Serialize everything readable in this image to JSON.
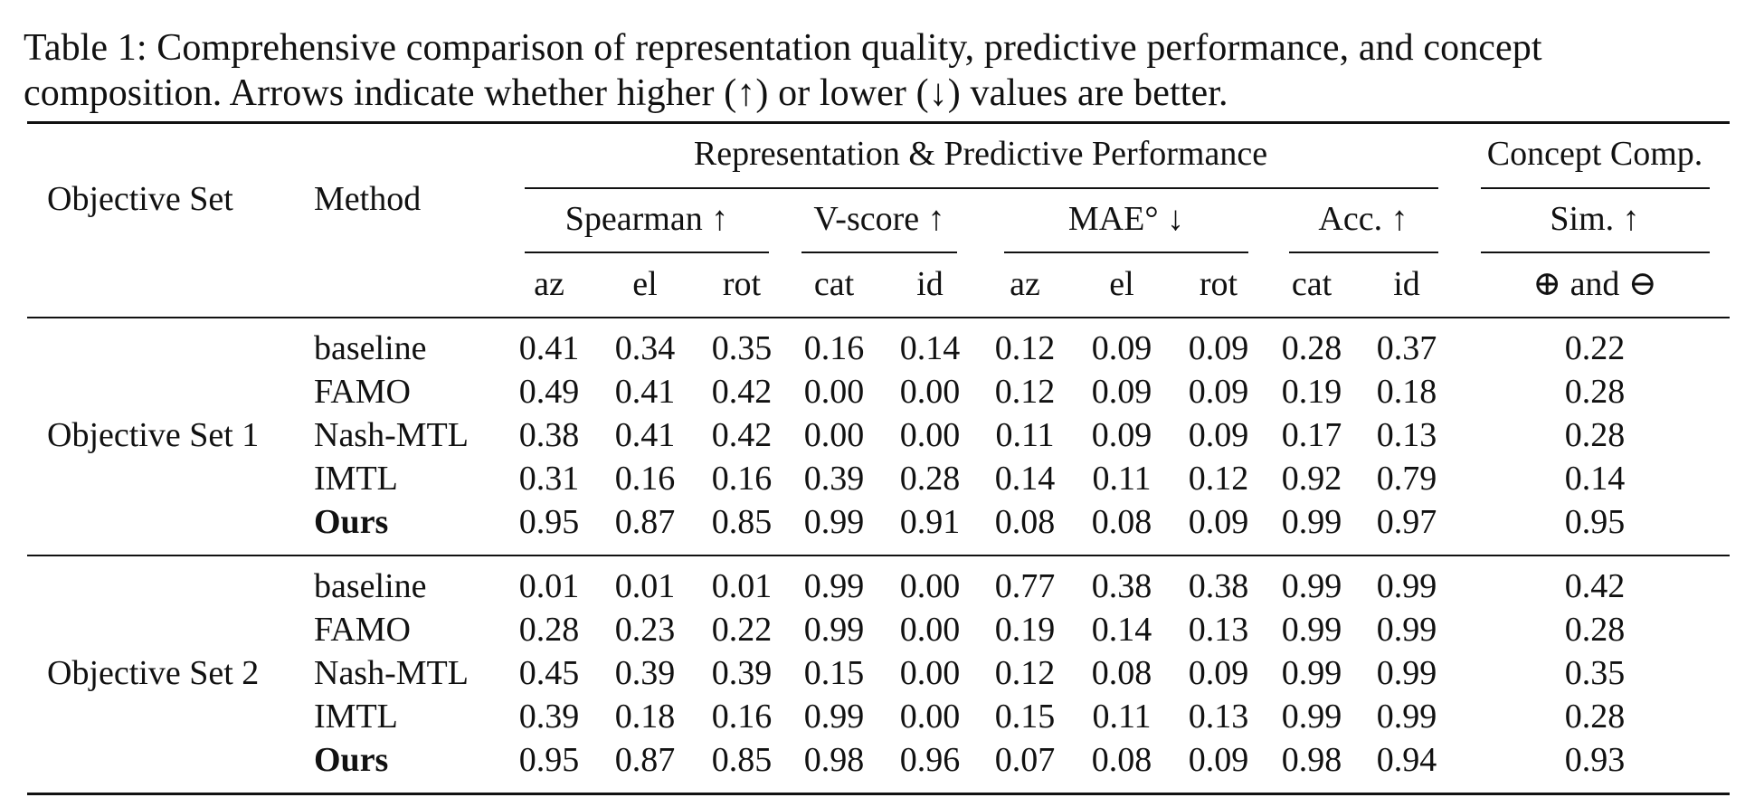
{
  "caption": {
    "line1": "Table 1: Comprehensive comparison of representation quality, predictive performance, and concept",
    "line2": "composition. Arrows indicate whether higher (↑) or lower (↓) values are better."
  },
  "header": {
    "objective_set": "Objective Set",
    "method": "Method",
    "group_rep": "Representation & Predictive Performance",
    "group_concept": "Concept Comp.",
    "metrics": {
      "spearman": "Spearman ↑",
      "vscore": "V-score ↑",
      "mae": "MAE° ↓",
      "acc": "Acc. ↑",
      "sim": "Sim. ↑"
    },
    "subcols": [
      "az",
      "el",
      "rot",
      "cat",
      "id",
      "az",
      "el",
      "rot",
      "cat",
      "id"
    ],
    "concept_sub": "⊕ and ⊖"
  },
  "groups": [
    {
      "name": "Objective Set 1",
      "rows": [
        {
          "method": "baseline",
          "bold": false,
          "values": [
            "0.41",
            "0.34",
            "0.35",
            "0.16",
            "0.14",
            "0.12",
            "0.09",
            "0.09",
            "0.28",
            "0.37",
            "0.22"
          ]
        },
        {
          "method": "FAMO",
          "bold": false,
          "values": [
            "0.49",
            "0.41",
            "0.42",
            "0.00",
            "0.00",
            "0.12",
            "0.09",
            "0.09",
            "0.19",
            "0.18",
            "0.28"
          ]
        },
        {
          "method": "Nash-MTL",
          "bold": false,
          "values": [
            "0.38",
            "0.41",
            "0.42",
            "0.00",
            "0.00",
            "0.11",
            "0.09",
            "0.09",
            "0.17",
            "0.13",
            "0.28"
          ]
        },
        {
          "method": "IMTL",
          "bold": false,
          "values": [
            "0.31",
            "0.16",
            "0.16",
            "0.39",
            "0.28",
            "0.14",
            "0.11",
            "0.12",
            "0.92",
            "0.79",
            "0.14"
          ]
        },
        {
          "method": "Ours",
          "bold": true,
          "values": [
            "0.95",
            "0.87",
            "0.85",
            "0.99",
            "0.91",
            "0.08",
            "0.08",
            "0.09",
            "0.99",
            "0.97",
            "0.95"
          ]
        }
      ]
    },
    {
      "name": "Objective Set 2",
      "rows": [
        {
          "method": "baseline",
          "bold": false,
          "values": [
            "0.01",
            "0.01",
            "0.01",
            "0.99",
            "0.00",
            "0.77",
            "0.38",
            "0.38",
            "0.99",
            "0.99",
            "0.42"
          ]
        },
        {
          "method": "FAMO",
          "bold": false,
          "values": [
            "0.28",
            "0.23",
            "0.22",
            "0.99",
            "0.00",
            "0.19",
            "0.14",
            "0.13",
            "0.99",
            "0.99",
            "0.28"
          ]
        },
        {
          "method": "Nash-MTL",
          "bold": false,
          "values": [
            "0.45",
            "0.39",
            "0.39",
            "0.15",
            "0.00",
            "0.12",
            "0.08",
            "0.09",
            "0.99",
            "0.99",
            "0.35"
          ]
        },
        {
          "method": "IMTL",
          "bold": false,
          "values": [
            "0.39",
            "0.18",
            "0.16",
            "0.99",
            "0.00",
            "0.15",
            "0.11",
            "0.13",
            "0.99",
            "0.99",
            "0.28"
          ]
        },
        {
          "method": "Ours",
          "bold": true,
          "values": [
            "0.95",
            "0.87",
            "0.85",
            "0.98",
            "0.96",
            "0.07",
            "0.08",
            "0.09",
            "0.98",
            "0.94",
            "0.93"
          ]
        }
      ]
    }
  ]
}
